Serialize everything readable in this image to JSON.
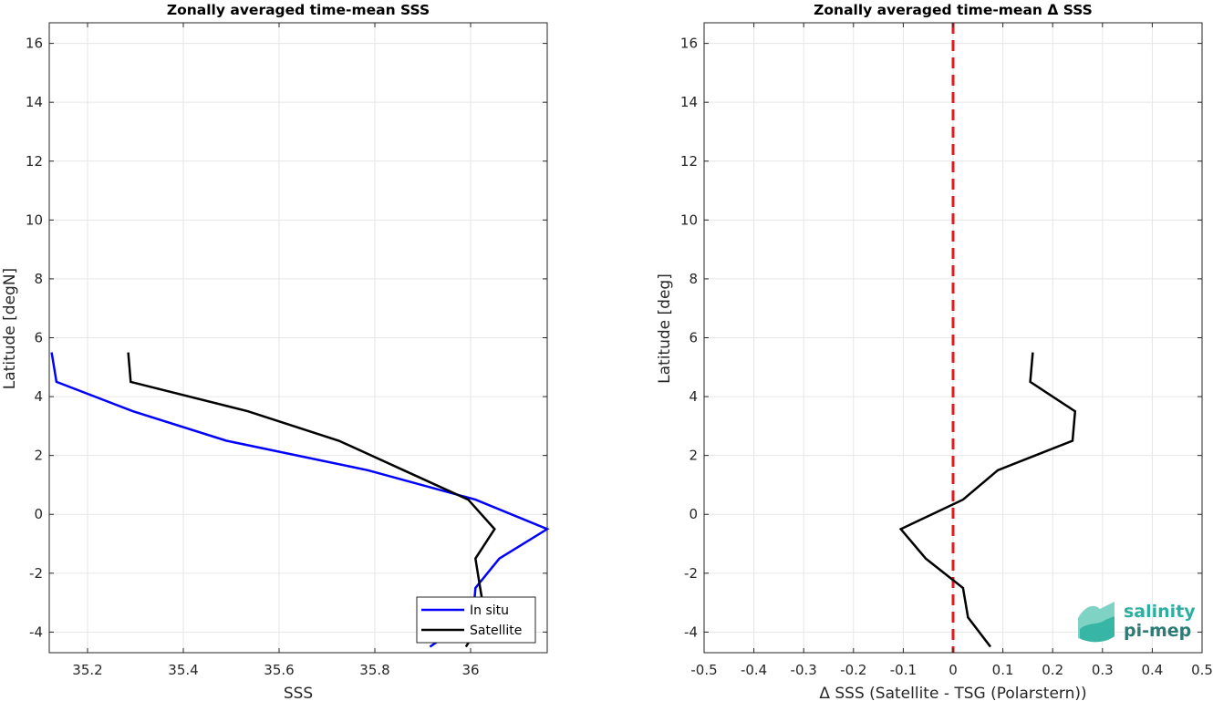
{
  "chart_data": [
    {
      "type": "line",
      "title": "Zonally averaged time-mean SSS",
      "xlabel": "SSS",
      "ylabel": "Latitude [degN]",
      "xlim": [
        35.12,
        36.16
      ],
      "ylim": [
        -4.7,
        16.7
      ],
      "xticks": [
        35.2,
        35.4,
        35.6,
        35.8,
        36
      ],
      "xtick_labels": [
        "35.2",
        "35.4",
        "35.6",
        "35.8",
        "36"
      ],
      "yticks": [
        -4,
        -2,
        0,
        2,
        4,
        6,
        8,
        10,
        12,
        14,
        16
      ],
      "ytick_labels": [
        "-4",
        "-2",
        "0",
        "2",
        "4",
        "6",
        "8",
        "10",
        "12",
        "14",
        "16"
      ],
      "grid": true,
      "legend_position": "bottom-right",
      "series": [
        {
          "name": "In situ",
          "color": "#0000ff",
          "x": [
            35.125,
            35.135,
            35.295,
            35.49,
            35.785,
            36.01,
            36.16,
            36.06,
            36.01,
            36.005,
            35.915
          ],
          "y": [
            5.5,
            4.5,
            3.5,
            2.5,
            1.5,
            0.5,
            -0.5,
            -1.5,
            -2.5,
            -3.5,
            -4.5
          ]
        },
        {
          "name": "Satellite",
          "color": "#000000",
          "x": [
            35.285,
            35.29,
            35.535,
            35.725,
            35.86,
            35.995,
            36.05,
            36.01,
            36.02,
            36.03,
            35.99
          ],
          "y": [
            5.5,
            4.5,
            3.5,
            2.5,
            1.5,
            0.5,
            -0.5,
            -1.5,
            -2.5,
            -3.5,
            -4.5
          ]
        }
      ]
    },
    {
      "type": "line",
      "title": "Zonally averaged time-mean Δ SSS",
      "xlabel": "Δ SSS (Satellite - TSG (Polarstern))",
      "ylabel": "Latitude [deg]",
      "xlim": [
        -0.5,
        0.5
      ],
      "ylim": [
        -4.7,
        16.7
      ],
      "xticks": [
        -0.5,
        -0.4,
        -0.3,
        -0.2,
        -0.1,
        0,
        0.1,
        0.2,
        0.3,
        0.4,
        0.5
      ],
      "xtick_labels": [
        "-0.5",
        "-0.4",
        "-0.3",
        "-0.2",
        "-0.1",
        "0",
        "0.1",
        "0.2",
        "0.3",
        "0.4",
        "0.5"
      ],
      "yticks": [
        -4,
        -2,
        0,
        2,
        4,
        6,
        8,
        10,
        12,
        14,
        16
      ],
      "ytick_labels": [
        "-4",
        "-2",
        "0",
        "2",
        "4",
        "6",
        "8",
        "10",
        "12",
        "14",
        "16"
      ],
      "grid": true,
      "reference_line": {
        "x": 0,
        "color": "#e31a1c",
        "style": "dashed"
      },
      "series": [
        {
          "color": "#000000",
          "x": [
            0.16,
            0.155,
            0.245,
            0.24,
            0.09,
            0.02,
            -0.105,
            -0.055,
            0.02,
            0.03,
            0.075
          ],
          "y": [
            5.5,
            4.5,
            3.5,
            2.5,
            1.5,
            0.5,
            -0.5,
            -1.5,
            -2.5,
            -3.5,
            -4.5
          ]
        }
      ]
    }
  ],
  "logo": {
    "line1": "salinity",
    "line2": "pi-mep",
    "color1": "#2ab0a0",
    "color2": "#2e7b74"
  }
}
